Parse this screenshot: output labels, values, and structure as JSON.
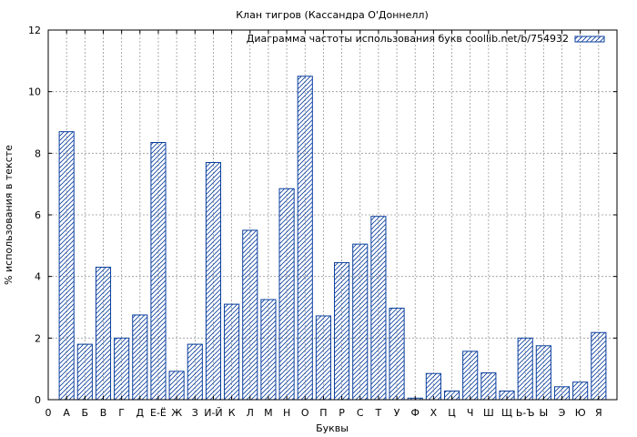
{
  "chart_data": {
    "type": "bar",
    "title": "Клан тигров (Кассандра О'Доннелл)",
    "xlabel": "Буквы",
    "ylabel": "% использования в тексте",
    "ylim": [
      0,
      12
    ],
    "yticks": [
      0,
      2,
      4,
      6,
      8,
      10,
      12
    ],
    "x_origin_label": "0",
    "grid": true,
    "legend_position": "top-right",
    "series": [
      {
        "name": "Диаграмма частоты использования букв coollib.net/b/754932",
        "color": "#0b3f9e",
        "pattern": "diagonal-hatch"
      }
    ],
    "categories": [
      "А",
      "Б",
      "В",
      "Г",
      "Д",
      "Е-Ё",
      "Ж",
      "З",
      "И-Й",
      "К",
      "Л",
      "М",
      "Н",
      "О",
      "П",
      "Р",
      "С",
      "Т",
      "У",
      "Ф",
      "Х",
      "Ц",
      "Ч",
      "Ш",
      "Щ",
      "Ь-Ъ",
      "Ы",
      "Э",
      "Ю",
      "Я"
    ],
    "values": [
      8.7,
      1.8,
      4.3,
      2.0,
      2.75,
      8.35,
      0.92,
      1.8,
      7.7,
      3.1,
      5.5,
      3.25,
      6.85,
      10.5,
      2.72,
      4.45,
      5.05,
      5.95,
      2.97,
      0.05,
      0.85,
      0.28,
      1.57,
      0.87,
      0.28,
      2.0,
      1.75,
      0.42,
      0.57,
      2.18
    ]
  }
}
